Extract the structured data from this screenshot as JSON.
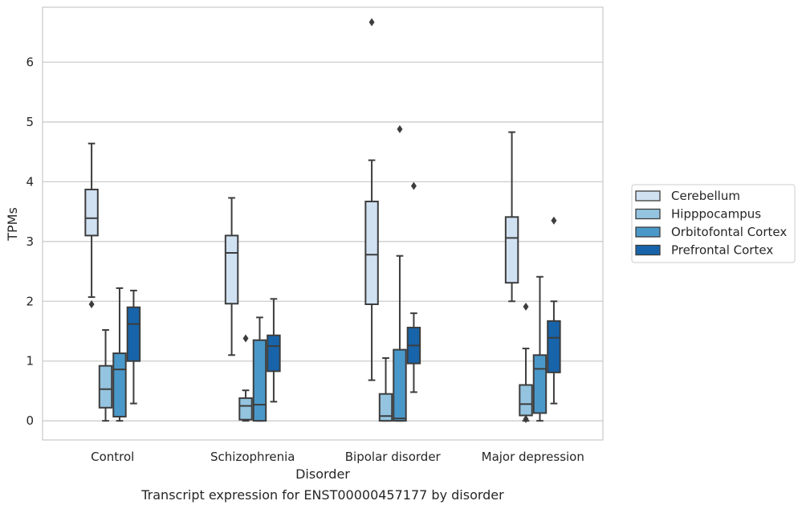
{
  "chart_data": {
    "type": "box",
    "title": "Transcript expression for ENST00000457177 by disorder",
    "xlabel": "Disorder",
    "ylabel": "TPMs",
    "categories": [
      "Control",
      "Schizophrenia",
      "Bipolar disorder",
      "Major depression"
    ],
    "ylim": [
      -0.32,
      6.92
    ],
    "yticks": [
      0,
      1,
      2,
      3,
      4,
      5,
      6
    ],
    "grid": true,
    "legend_position": "right",
    "series": [
      {
        "name": "Cerebellum",
        "color": "#d0e1f2",
        "boxes": [
          {
            "whisker_low": 2.07,
            "q1": 3.1,
            "median": 3.39,
            "q3": 3.87,
            "whisker_high": 4.64,
            "outliers": [
              1.95
            ]
          },
          {
            "whisker_low": 1.1,
            "q1": 1.96,
            "median": 2.81,
            "q3": 3.1,
            "whisker_high": 3.73,
            "outliers": []
          },
          {
            "whisker_low": 0.68,
            "q1": 1.95,
            "median": 2.78,
            "q3": 3.67,
            "whisker_high": 4.36,
            "outliers": [
              6.67
            ]
          },
          {
            "whisker_low": 2.0,
            "q1": 2.31,
            "median": 3.06,
            "q3": 3.41,
            "whisker_high": 4.83,
            "outliers": []
          }
        ]
      },
      {
        "name": "Hipppocampus",
        "color": "#94c4df",
        "boxes": [
          {
            "whisker_low": 0.0,
            "q1": 0.22,
            "median": 0.53,
            "q3": 0.92,
            "whisker_high": 1.52,
            "outliers": []
          },
          {
            "whisker_low": 0.0,
            "q1": 0.02,
            "median": 0.25,
            "q3": 0.38,
            "whisker_high": 0.51,
            "outliers": [
              1.38
            ]
          },
          {
            "whisker_low": 0.0,
            "q1": 0.0,
            "median": 0.08,
            "q3": 0.45,
            "whisker_high": 1.05,
            "outliers": []
          },
          {
            "whisker_low": 0.0,
            "q1": 0.09,
            "median": 0.28,
            "q3": 0.6,
            "whisker_high": 1.21,
            "outliers": [
              0.03,
              1.91
            ]
          }
        ]
      },
      {
        "name": "Orbitofontal Cortex",
        "color": "#4a98c9",
        "boxes": [
          {
            "whisker_low": 0.0,
            "q1": 0.07,
            "median": 0.86,
            "q3": 1.13,
            "whisker_high": 2.22,
            "outliers": []
          },
          {
            "whisker_low": 0.0,
            "q1": 0.0,
            "median": 0.27,
            "q3": 1.35,
            "whisker_high": 1.73,
            "outliers": []
          },
          {
            "whisker_low": 0.0,
            "q1": 0.0,
            "median": 0.04,
            "q3": 1.19,
            "whisker_high": 2.76,
            "outliers": [
              4.88
            ]
          },
          {
            "whisker_low": 0.0,
            "q1": 0.13,
            "median": 0.87,
            "q3": 1.1,
            "whisker_high": 2.41,
            "outliers": []
          }
        ]
      },
      {
        "name": "Prefrontal Cortex",
        "color": "#1764ab",
        "boxes": [
          {
            "whisker_low": 0.29,
            "q1": 1.0,
            "median": 1.62,
            "q3": 1.9,
            "whisker_high": 2.18,
            "outliers": []
          },
          {
            "whisker_low": 0.32,
            "q1": 0.83,
            "median": 1.25,
            "q3": 1.43,
            "whisker_high": 2.04,
            "outliers": []
          },
          {
            "whisker_low": 0.48,
            "q1": 0.96,
            "median": 1.26,
            "q3": 1.56,
            "whisker_high": 1.8,
            "outliers": [
              3.93
            ]
          },
          {
            "whisker_low": 0.29,
            "q1": 0.81,
            "median": 1.39,
            "q3": 1.67,
            "whisker_high": 2.0,
            "outliers": [
              3.35
            ]
          }
        ]
      }
    ]
  }
}
